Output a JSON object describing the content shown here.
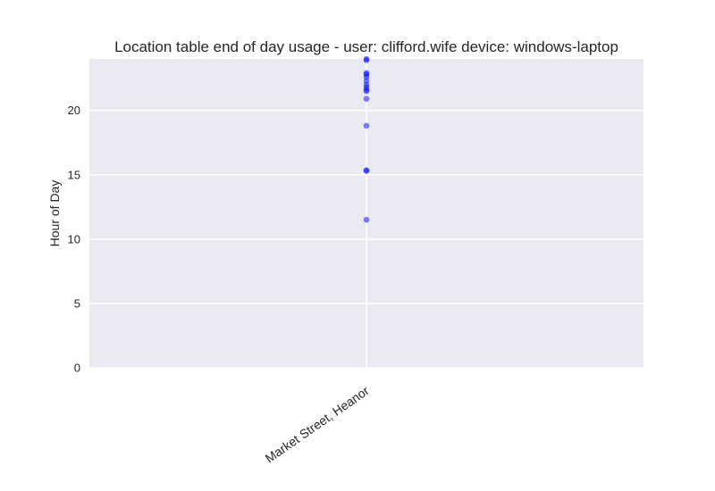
{
  "chart_data": {
    "type": "scatter",
    "title": "Location table end of day usage -  user: clifford.wife device: windows-laptop",
    "xlabel": "",
    "ylabel": "Hour of Day",
    "categories": [
      "Market Street, Heanor"
    ],
    "ylim": [
      0,
      24
    ],
    "yticks": [
      0,
      5,
      10,
      15,
      20
    ],
    "grid": true,
    "point_color": "#0000ff",
    "background_color": "#eaeaf2",
    "grid_color": "#ffffff",
    "series": [
      {
        "category": "Market Street, Heanor",
        "values": [
          11.5,
          15.3,
          15.35,
          18.8,
          20.9,
          21.5,
          21.6,
          21.8,
          22.0,
          22.3,
          22.6,
          22.8,
          22.9,
          23.9,
          24.0
        ]
      }
    ]
  }
}
